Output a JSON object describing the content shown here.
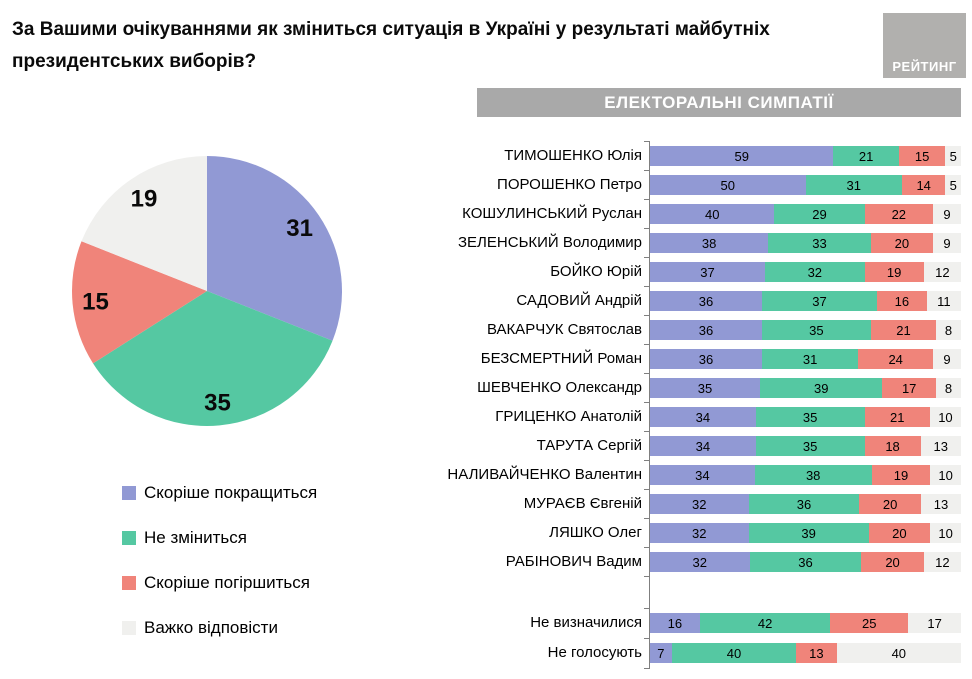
{
  "title": "За Вашими очікуваннями як зміниться ситуація в Україні у результаті майбутніх президентських виборів?",
  "logo": {
    "text": "РЕЙТИНГ"
  },
  "section_header": "ЕЛЕКТОРАЛЬНІ СИМПАТІЇ",
  "colors": {
    "improve": "#9199d4",
    "no_change": "#55c8a2",
    "worsen": "#f0847a",
    "hard_to_say": "#f0f0ee"
  },
  "legend": [
    {
      "label": "Скоріше покращиться",
      "color": "#9199d4"
    },
    {
      "label": "Не зміниться",
      "color": "#55c8a2"
    },
    {
      "label": "Скоріше погіршиться",
      "color": "#f0847a"
    },
    {
      "label": "Важко відповісти",
      "color": "#f0f0ee"
    }
  ],
  "chart_data": [
    {
      "type": "pie",
      "title": "За Вашими очікуваннями як зміниться ситуація в Україні у результаті майбутніх президентських виборів?",
      "labels": [
        "Скоріше покращиться",
        "Не зміниться",
        "Скоріше погіршиться",
        "Важко відповісти"
      ],
      "values": [
        31,
        35,
        15,
        19
      ],
      "colors": [
        "#9199d4",
        "#55c8a2",
        "#f0847a",
        "#f0f0ee"
      ],
      "start_angle_deg": 0,
      "direction": "clockwise",
      "legend_position": "bottom-left"
    },
    {
      "type": "bar",
      "stacked": true,
      "orientation": "horizontal",
      "title": "ЕЛЕКТОРАЛЬНІ СИМПАТІЇ",
      "series_labels": [
        "Скоріше покращиться",
        "Не зміниться",
        "Скоріше погіршиться",
        "Важко відповісти"
      ],
      "xlim": [
        0,
        100
      ],
      "rows": [
        {
          "label": "ТИМОШЕНКО Юлія",
          "values": [
            59,
            21,
            15,
            5
          ],
          "group": "candidates"
        },
        {
          "label": "ПОРОШЕНКО Петро",
          "values": [
            50,
            31,
            14,
            5
          ],
          "group": "candidates"
        },
        {
          "label": "КОШУЛИНСЬКИЙ Руслан",
          "values": [
            40,
            29,
            22,
            9
          ],
          "group": "candidates"
        },
        {
          "label": "ЗЕЛЕНСЬКИЙ Володимир",
          "values": [
            38,
            33,
            20,
            9
          ],
          "group": "candidates"
        },
        {
          "label": "БОЙКО Юрій",
          "values": [
            37,
            32,
            19,
            12
          ],
          "group": "candidates"
        },
        {
          "label": "САДОВИЙ Андрій",
          "values": [
            36,
            37,
            16,
            11
          ],
          "group": "candidates"
        },
        {
          "label": "ВАКАРЧУК Святослав",
          "values": [
            36,
            35,
            21,
            8
          ],
          "group": "candidates"
        },
        {
          "label": "БЕЗСМЕРТНИЙ Роман",
          "values": [
            36,
            31,
            24,
            9
          ],
          "group": "candidates"
        },
        {
          "label": "ШЕВЧЕНКО Олександр",
          "values": [
            35,
            39,
            17,
            8
          ],
          "group": "candidates"
        },
        {
          "label": "ГРИЦЕНКО Анатолій",
          "values": [
            34,
            35,
            21,
            10
          ],
          "group": "candidates"
        },
        {
          "label": "ТАРУТА Сергій",
          "values": [
            34,
            35,
            18,
            13
          ],
          "group": "candidates"
        },
        {
          "label": "НАЛИВАЙЧЕНКО Валентин",
          "values": [
            34,
            38,
            19,
            10
          ],
          "group": "candidates"
        },
        {
          "label": "МУРАЄВ Євгеній",
          "values": [
            32,
            36,
            20,
            13
          ],
          "group": "candidates"
        },
        {
          "label": "ЛЯШКО Олег",
          "values": [
            32,
            39,
            20,
            10
          ],
          "group": "candidates"
        },
        {
          "label": "РАБІНОВИЧ Вадим",
          "values": [
            32,
            36,
            20,
            12
          ],
          "group": "candidates"
        },
        {
          "label": "Не визначилися",
          "values": [
            16,
            42,
            25,
            17
          ],
          "group": "other"
        },
        {
          "label": "Не голосують",
          "values": [
            7,
            40,
            13,
            40
          ],
          "group": "other"
        }
      ]
    }
  ]
}
